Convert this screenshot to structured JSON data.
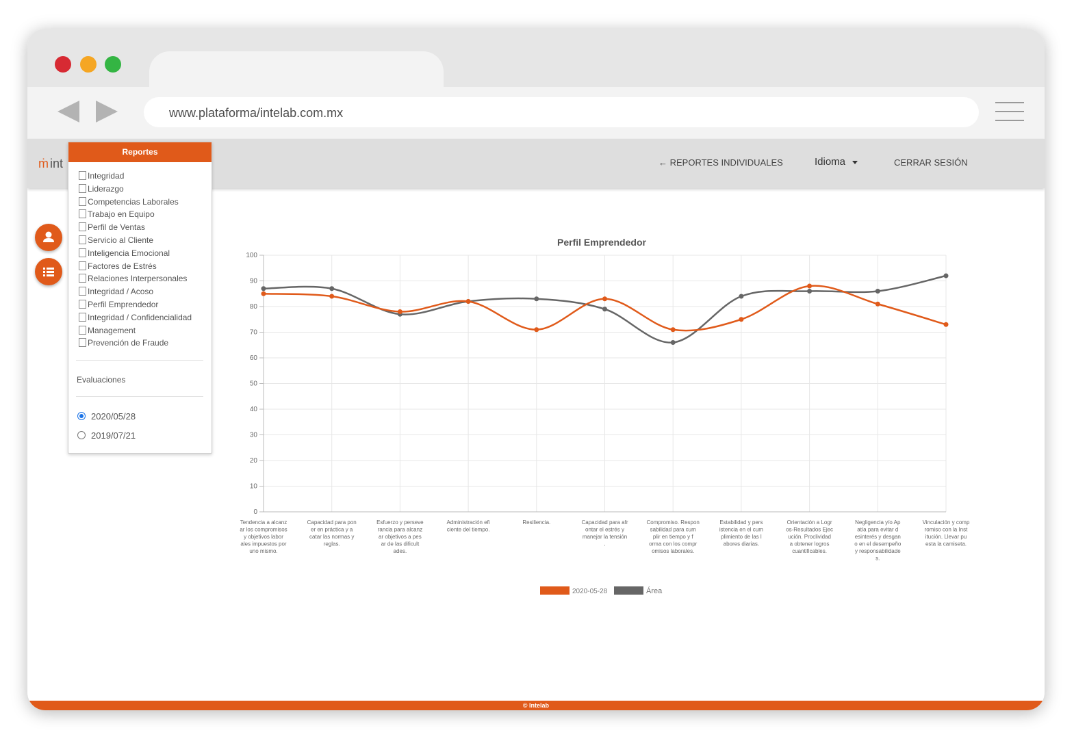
{
  "browser": {
    "url": "www.plataforma/intelab.com.mx",
    "traffic_lights": [
      "#d72a33",
      "#f5a623",
      "#34b543"
    ]
  },
  "header": {
    "logo_text": "int",
    "nav": {
      "reportes_individuales": "← REPORTES INDIVIDUALES",
      "idioma": "Idioma",
      "cerrar_sesion": "CERRAR SESIÓN"
    }
  },
  "sidebar_buttons": [
    {
      "icon": "user-icon"
    },
    {
      "icon": "list-icon"
    }
  ],
  "reports_panel": {
    "title": "Reportes",
    "items": [
      "Integridad",
      "Liderazgo",
      "Competencias Laborales",
      "Trabajo en Equipo",
      "Perfil de Ventas",
      "Servicio al Cliente",
      "Inteligencia Emocional",
      "Factores de Estrés",
      "Relaciones Interpersonales",
      "Integridad / Acoso",
      "Perfil Emprendedor",
      "Integridad / Confidencialidad",
      "Management",
      "Prevención de Fraude"
    ],
    "evaluations_label": "Evaluaciones",
    "evaluations": [
      {
        "date": "2020/05/28",
        "selected": true
      },
      {
        "date": "2019/07/21",
        "selected": false
      }
    ]
  },
  "chart_data": {
    "type": "line",
    "title": "Perfil Emprendedor",
    "ylim": [
      0,
      100
    ],
    "yticks": [
      0,
      10,
      20,
      30,
      40,
      50,
      60,
      70,
      80,
      90,
      100
    ],
    "grid": true,
    "legend_position": "bottom",
    "categories": [
      [
        "Tendencia a alcanz",
        "ar los compromisos",
        "y objetivos labor",
        "ales impuestos por",
        "uno mismo."
      ],
      [
        "Capacidad para pon",
        "er en práctica y a",
        "catar las normas y",
        "reglas."
      ],
      [
        "Esfuerzo y perseve",
        "rancia para alcanz",
        "ar objetivos a pes",
        "ar de las dificult",
        "ades."
      ],
      [
        "Administración efi",
        "ciente del tiempo."
      ],
      [
        "Resiliencia."
      ],
      [
        "Capacidad para afr",
        "ontar el estrés y",
        "manejar la tensión",
        "."
      ],
      [
        "Compromiso. Respon",
        "sabilidad para cum",
        "plir en tiempo y f",
        "orma con los compr",
        "omisos laborales."
      ],
      [
        "Estabilidad y pers",
        "istencia en el cum",
        "plimiento de las l",
        "abores diarias."
      ],
      [
        "Orientación a Logr",
        "os-Resultados Ejec",
        "ución. Proclividad",
        "a obtener logros",
        "cuantificables."
      ],
      [
        "Negligencia y/o Ap",
        "atía para evitar d",
        "esinterés y desgan",
        "o en el desempeño",
        "y responsabilidade",
        "s."
      ],
      [
        "Vinculación y comp",
        "romiso con la Inst",
        "itución. Llevar pu",
        "esta la camiseta."
      ]
    ],
    "series": [
      {
        "name": "2020-05-28",
        "color": "#e05a1a",
        "values": [
          85,
          84,
          78,
          82,
          71,
          83,
          71,
          75,
          88,
          81,
          73
        ]
      },
      {
        "name": "Área",
        "color": "#666666",
        "values": [
          87,
          87,
          77,
          82,
          83,
          79,
          66,
          84,
          86,
          86,
          92
        ]
      }
    ]
  },
  "footer": {
    "text": "© Intelab"
  }
}
